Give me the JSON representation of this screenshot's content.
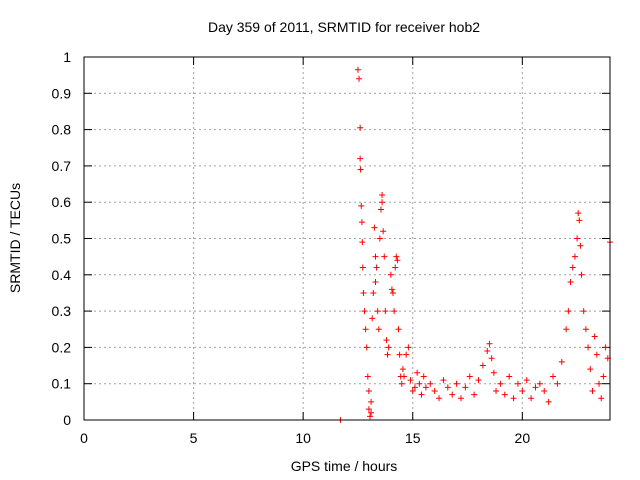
{
  "chart_data": {
    "type": "scatter",
    "title": "Day 359 of 2011, SRMTID for receiver hob2",
    "xlabel": "GPS time / hours",
    "ylabel": "SRMTID / TECUs",
    "xlim": [
      0,
      24
    ],
    "ylim": [
      0,
      1
    ],
    "xticks": [
      0,
      5,
      10,
      15,
      20
    ],
    "yticks": [
      0,
      0.1,
      0.2,
      0.3,
      0.4,
      0.5,
      0.6,
      0.7,
      0.8,
      0.9,
      1
    ],
    "grid": true,
    "marker": "+",
    "color": "#ff0000",
    "series": [
      {
        "name": "SRMTID",
        "x": [
          11.7,
          12.5,
          12.55,
          12.6,
          12.6,
          12.62,
          12.65,
          12.68,
          12.7,
          12.72,
          12.75,
          12.8,
          12.85,
          12.9,
          12.95,
          13.0,
          13.0,
          13.05,
          13.1,
          13.1,
          13.15,
          13.2,
          13.25,
          13.3,
          13.3,
          13.35,
          13.4,
          13.45,
          13.5,
          13.55,
          13.6,
          13.6,
          13.65,
          13.7,
          13.75,
          13.8,
          13.85,
          13.9,
          14.0,
          14.05,
          14.1,
          14.15,
          14.2,
          14.25,
          14.3,
          14.35,
          14.4,
          14.45,
          14.5,
          14.55,
          14.6,
          14.7,
          14.8,
          14.9,
          15.0,
          15.1,
          15.2,
          15.3,
          15.4,
          15.5,
          15.6,
          15.8,
          16.0,
          16.2,
          16.4,
          16.6,
          16.8,
          17.0,
          17.2,
          17.4,
          17.6,
          17.8,
          18.0,
          18.2,
          18.4,
          18.5,
          18.6,
          18.7,
          18.8,
          19.0,
          19.2,
          19.4,
          19.6,
          19.8,
          20.0,
          20.2,
          20.4,
          20.6,
          20.8,
          21.0,
          21.2,
          21.4,
          21.6,
          21.8,
          22.0,
          22.1,
          22.2,
          22.3,
          22.4,
          22.5,
          22.55,
          22.6,
          22.65,
          22.7,
          22.8,
          22.9,
          23.0,
          23.1,
          23.2,
          23.3,
          23.4,
          23.5,
          23.6,
          23.7,
          23.8,
          23.9,
          24.0
        ],
        "y": [
          0.0,
          0.965,
          0.94,
          0.805,
          0.72,
          0.69,
          0.59,
          0.545,
          0.49,
          0.42,
          0.35,
          0.3,
          0.25,
          0.2,
          0.12,
          0.08,
          0.03,
          0.01,
          0.02,
          0.05,
          0.28,
          0.35,
          0.53,
          0.45,
          0.38,
          0.42,
          0.3,
          0.25,
          0.5,
          0.58,
          0.62,
          0.6,
          0.52,
          0.45,
          0.3,
          0.22,
          0.18,
          0.2,
          0.4,
          0.36,
          0.35,
          0.3,
          0.42,
          0.45,
          0.44,
          0.25,
          0.18,
          0.12,
          0.1,
          0.14,
          0.12,
          0.18,
          0.2,
          0.11,
          0.08,
          0.09,
          0.13,
          0.1,
          0.07,
          0.12,
          0.09,
          0.1,
          0.08,
          0.06,
          0.11,
          0.09,
          0.07,
          0.1,
          0.06,
          0.09,
          0.12,
          0.07,
          0.11,
          0.15,
          0.19,
          0.21,
          0.17,
          0.13,
          0.08,
          0.1,
          0.07,
          0.12,
          0.06,
          0.1,
          0.08,
          0.11,
          0.06,
          0.09,
          0.1,
          0.08,
          0.05,
          0.12,
          0.1,
          0.16,
          0.25,
          0.3,
          0.38,
          0.42,
          0.45,
          0.5,
          0.57,
          0.55,
          0.48,
          0.4,
          0.3,
          0.25,
          0.2,
          0.14,
          0.08,
          0.23,
          0.18,
          0.1,
          0.06,
          0.12,
          0.2,
          0.17,
          0.49
        ]
      }
    ]
  }
}
